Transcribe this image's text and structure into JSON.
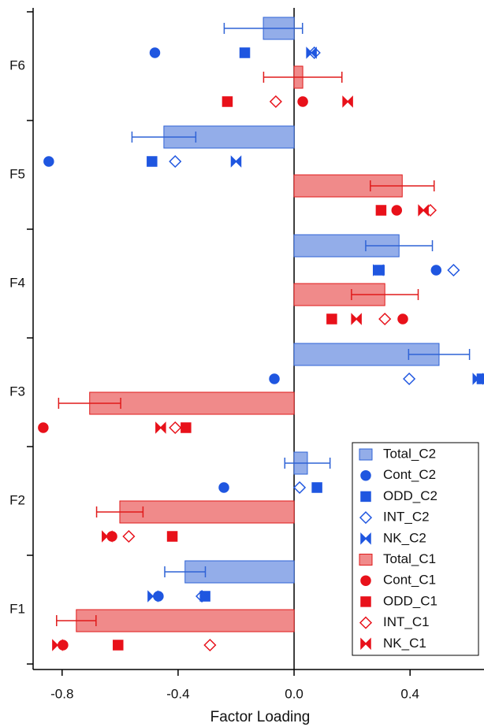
{
  "chart_data": {
    "type": "bar",
    "orientation": "horizontal",
    "x_label": "Factor Loading",
    "categories": [
      "F1",
      "F2",
      "F3",
      "F4",
      "F5",
      "F6"
    ],
    "xlim": [
      -0.9,
      0.655
    ],
    "xticks": [
      -0.8,
      -0.4,
      {
        "value": 0,
        "label": "0.0"
      },
      0.4
    ],
    "legend": "lower right",
    "series": [
      {
        "name": "Total_C2",
        "marker": "bar",
        "color": "#2f63d6",
        "fill": "#93ade9",
        "values": [
          -0.376,
          0.046,
          0.5,
          0.362,
          -0.449,
          -0.106
        ],
        "errors": [
          0.07,
          0.078,
          0.105,
          0.115,
          0.11,
          0.135
        ]
      },
      {
        "name": "Cont_C2",
        "marker": "circle",
        "color": "#1f56e0",
        "values": [
          -0.468,
          -0.242,
          -0.068,
          0.49,
          -0.846,
          -0.48
        ]
      },
      {
        "name": "ODD_C2",
        "marker": "square",
        "color": "#1f56e0",
        "values": [
          -0.307,
          0.079,
          0.648,
          0.294,
          -0.49,
          -0.17
        ]
      },
      {
        "name": "INT_C2",
        "marker": "diamond",
        "color": "#1f56e0",
        "values": [
          -0.318,
          0.019,
          0.397,
          0.55,
          -0.41,
          0.07
        ]
      },
      {
        "name": "NK_C2",
        "marker": "bowtie",
        "color": "#1f56e0",
        "values": [
          -0.487,
          0.25,
          0.634,
          0.29,
          -0.2,
          0.06
        ]
      },
      {
        "name": "Total_C1",
        "marker": "bar",
        "color": "#e01b1b",
        "fill": "#f08a8a",
        "values": [
          -0.751,
          -0.601,
          -0.705,
          0.313,
          0.373,
          0.03
        ],
        "errors": [
          0.068,
          0.08,
          0.107,
          0.115,
          0.11,
          0.135
        ]
      },
      {
        "name": "Cont_C1",
        "marker": "circle",
        "color": "#e8111a",
        "values": [
          -0.797,
          -0.628,
          -0.865,
          0.375,
          0.354,
          0.03
        ]
      },
      {
        "name": "ODD_C1",
        "marker": "square",
        "color": "#e8111a",
        "values": [
          -0.607,
          -0.42,
          -0.373,
          0.13,
          0.3,
          -0.23
        ]
      },
      {
        "name": "INT_C1",
        "marker": "diamond",
        "color": "#e8111a",
        "values": [
          -0.29,
          -0.57,
          -0.41,
          0.313,
          0.47,
          -0.063
        ]
      },
      {
        "name": "NK_C1",
        "marker": "bowtie",
        "color": "#e8111a",
        "values": [
          -0.816,
          -0.645,
          -0.46,
          0.215,
          0.446,
          0.185
        ]
      }
    ]
  }
}
